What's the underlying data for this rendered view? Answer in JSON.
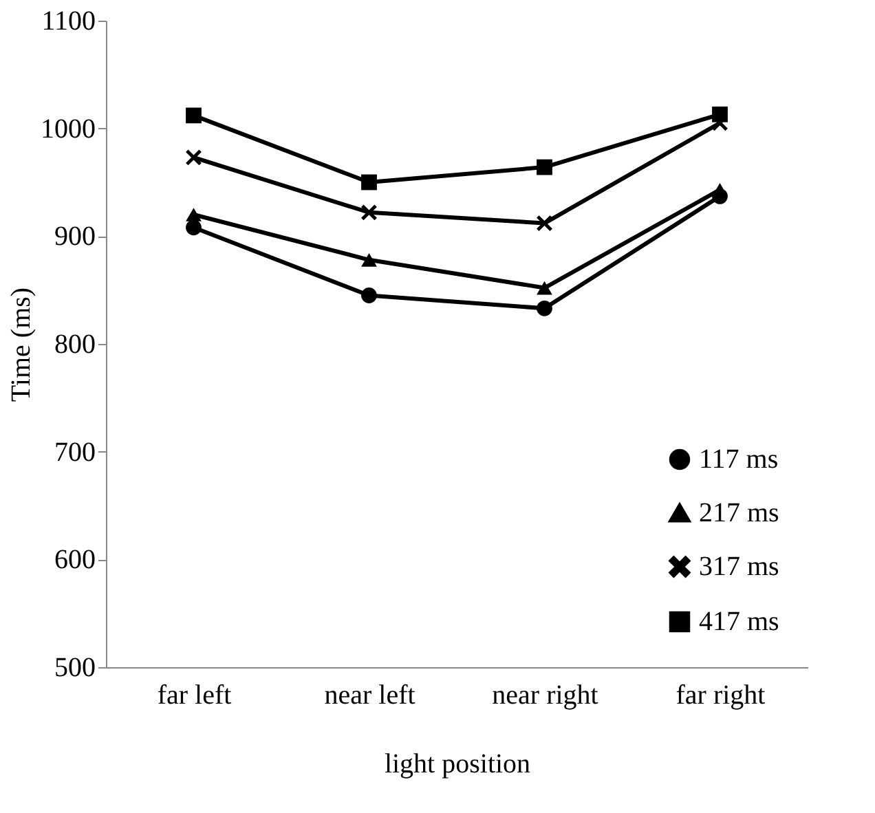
{
  "chart_data": {
    "type": "line",
    "xlabel": "light position",
    "ylabel": "Time (ms)",
    "categories": [
      "far left",
      "near left",
      "near right",
      "far right"
    ],
    "ylim": [
      500,
      1100
    ],
    "yticks": [
      500,
      600,
      700,
      800,
      900,
      1000,
      1100
    ],
    "grid": false,
    "legend": "bottom right",
    "line_style": "solid",
    "series": [
      {
        "name": "117 ms",
        "color": "#000000",
        "marker": "circle",
        "values": [
          908,
          845,
          833,
          937
        ]
      },
      {
        "name": "217 ms",
        "color": "#000000",
        "marker": "triangle",
        "values": [
          920,
          878,
          852,
          943
        ]
      },
      {
        "name": "317 ms",
        "color": "#000000",
        "marker": "cross",
        "values": [
          973,
          922,
          912,
          1005
        ]
      },
      {
        "name": "417 ms",
        "color": "#000000",
        "marker": "square",
        "values": [
          1012,
          950,
          964,
          1013
        ]
      }
    ]
  }
}
